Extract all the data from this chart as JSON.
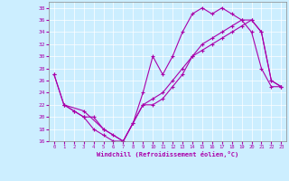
{
  "xlabel": "Windchill (Refroidissement éolien,°C)",
  "bg_color": "#cceeff",
  "line_color": "#aa00aa",
  "ylim": [
    16,
    39
  ],
  "xlim": [
    -0.5,
    23.5
  ],
  "yticks": [
    16,
    18,
    20,
    22,
    24,
    26,
    28,
    30,
    32,
    34,
    36,
    38
  ],
  "xticks": [
    0,
    1,
    2,
    3,
    4,
    5,
    6,
    7,
    8,
    9,
    10,
    11,
    12,
    13,
    14,
    15,
    16,
    17,
    18,
    19,
    20,
    21,
    22,
    23
  ],
  "series1_x": [
    0,
    1,
    2,
    3,
    4,
    5,
    6,
    7,
    8,
    9,
    10,
    11,
    12,
    13,
    14,
    15,
    16,
    17,
    18,
    19,
    20,
    21,
    22,
    23
  ],
  "series1_y": [
    27,
    22,
    21,
    20,
    18,
    17,
    16,
    16,
    19,
    24,
    30,
    27,
    30,
    34,
    37,
    38,
    37,
    38,
    37,
    36,
    34,
    28,
    25,
    25
  ],
  "series2_x": [
    0,
    1,
    3,
    5,
    7,
    9,
    10,
    11,
    12,
    13,
    14,
    15,
    16,
    17,
    18,
    19,
    20,
    21,
    22,
    23
  ],
  "series2_y": [
    27,
    22,
    21,
    18,
    16,
    22,
    22,
    23,
    25,
    27,
    30,
    32,
    33,
    34,
    35,
    36,
    36,
    34,
    26,
    25
  ],
  "series3_x": [
    1,
    2,
    3,
    4,
    5,
    6,
    7,
    8,
    9,
    10,
    11,
    12,
    13,
    14,
    15,
    16,
    17,
    18,
    19,
    20,
    21,
    22,
    23
  ],
  "series3_y": [
    22,
    21,
    20,
    20,
    18,
    17,
    16,
    19,
    22,
    23,
    24,
    26,
    28,
    30,
    31,
    32,
    33,
    34,
    35,
    36,
    34,
    26,
    25
  ]
}
